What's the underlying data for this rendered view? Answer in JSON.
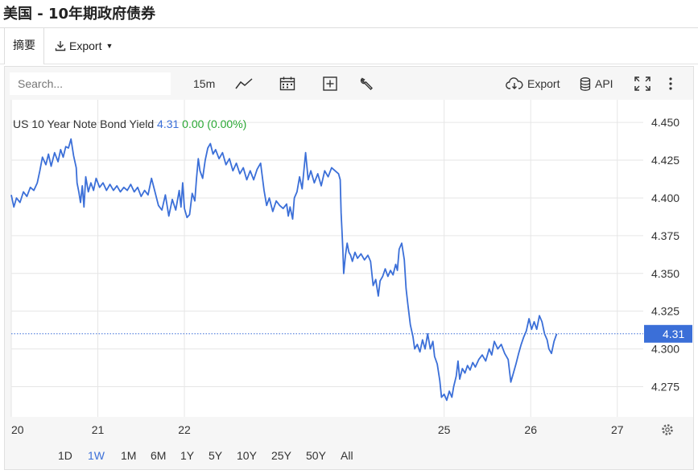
{
  "page": {
    "title": "美国 - 10年期政府债券"
  },
  "tabs": [
    {
      "label": "摘要"
    },
    {
      "label": "Export"
    }
  ],
  "toolbar": {
    "search_placeholder": "Search...",
    "interval": "15m",
    "export_label": "Export",
    "api_label": "API"
  },
  "legend": {
    "name": "US 10 Year Note Bond Yield",
    "value": "4.31",
    "change": "0.00 (0.00%)"
  },
  "last_price_label": "4.31",
  "ranges": [
    "1D",
    "1W",
    "1M",
    "6M",
    "1Y",
    "5Y",
    "10Y",
    "25Y",
    "50Y",
    "All"
  ],
  "active_range": "1W",
  "colors": {
    "line": "#3b6fd8",
    "accent": "#3b6fd8",
    "change": "#2aa834"
  },
  "chart_data": {
    "type": "line",
    "title": "",
    "xlabel": "",
    "ylabel": "",
    "ylim": [
      4.255,
      4.465
    ],
    "yticks": [
      4.275,
      4.3,
      4.325,
      4.35,
      4.375,
      4.4,
      4.425,
      4.45
    ],
    "ytick_labels": [
      "4.275",
      "4.300",
      "4.325",
      "4.350",
      "4.375",
      "4.400",
      "4.425",
      "4.450"
    ],
    "xlim": [
      20,
      27.3
    ],
    "xticks": [
      20,
      21,
      22,
      25,
      26,
      27
    ],
    "xtick_labels": [
      "20",
      "21",
      "22",
      "25",
      "26",
      "27"
    ],
    "grid": true,
    "legend_position": "top-left",
    "series": [
      {
        "name": "US 10 Year Note Bond Yield",
        "points": [
          [
            20.0,
            4.402
          ],
          [
            20.03,
            4.394
          ],
          [
            20.06,
            4.4
          ],
          [
            20.1,
            4.397
          ],
          [
            20.14,
            4.404
          ],
          [
            20.18,
            4.401
          ],
          [
            20.22,
            4.407
          ],
          [
            20.26,
            4.405
          ],
          [
            20.3,
            4.41
          ],
          [
            20.33,
            4.418
          ],
          [
            20.36,
            4.427
          ],
          [
            20.4,
            4.422
          ],
          [
            20.43,
            4.429
          ],
          [
            20.46,
            4.421
          ],
          [
            20.5,
            4.43
          ],
          [
            20.54,
            4.424
          ],
          [
            20.57,
            4.432
          ],
          [
            20.6,
            4.427
          ],
          [
            20.63,
            4.434
          ],
          [
            20.66,
            4.433
          ],
          [
            20.69,
            4.439
          ],
          [
            20.72,
            4.428
          ],
          [
            20.75,
            4.42
          ],
          [
            20.76,
            4.41
          ],
          [
            20.78,
            4.404
          ],
          [
            20.8,
            4.397
          ],
          [
            20.82,
            4.408
          ],
          [
            20.84,
            4.394
          ],
          [
            20.86,
            4.414
          ],
          [
            20.89,
            4.404
          ],
          [
            20.92,
            4.41
          ],
          [
            20.95,
            4.405
          ],
          [
            20.98,
            4.413
          ],
          [
            21.02,
            4.407
          ],
          [
            21.06,
            4.41
          ],
          [
            21.1,
            4.405
          ],
          [
            21.14,
            4.409
          ],
          [
            21.18,
            4.405
          ],
          [
            21.22,
            4.408
          ],
          [
            21.26,
            4.404
          ],
          [
            21.3,
            4.407
          ],
          [
            21.34,
            4.405
          ],
          [
            21.38,
            4.409
          ],
          [
            21.42,
            4.404
          ],
          [
            21.46,
            4.407
          ],
          [
            21.5,
            4.401
          ],
          [
            21.54,
            4.405
          ],
          [
            21.58,
            4.402
          ],
          [
            21.62,
            4.413
          ],
          [
            21.66,
            4.404
          ],
          [
            21.7,
            4.395
          ],
          [
            21.74,
            4.392
          ],
          [
            21.78,
            4.402
          ],
          [
            21.82,
            4.388
          ],
          [
            21.86,
            4.399
          ],
          [
            21.9,
            4.392
          ],
          [
            21.94,
            4.405
          ],
          [
            21.96,
            4.394
          ],
          [
            21.98,
            4.41
          ],
          [
            22.0,
            4.393
          ],
          [
            22.03,
            4.387
          ],
          [
            22.06,
            4.389
          ],
          [
            22.09,
            4.403
          ],
          [
            22.12,
            4.398
          ],
          [
            22.14,
            4.413
          ],
          [
            22.16,
            4.426
          ],
          [
            22.18,
            4.418
          ],
          [
            22.21,
            4.413
          ],
          [
            22.24,
            4.425
          ],
          [
            22.27,
            4.433
          ],
          [
            22.3,
            4.436
          ],
          [
            22.33,
            4.429
          ],
          [
            22.36,
            4.432
          ],
          [
            22.4,
            4.426
          ],
          [
            22.44,
            4.43
          ],
          [
            22.48,
            4.422
          ],
          [
            22.52,
            4.426
          ],
          [
            22.56,
            4.418
          ],
          [
            22.6,
            4.423
          ],
          [
            22.64,
            4.416
          ],
          [
            22.68,
            4.42
          ],
          [
            22.72,
            4.412
          ],
          [
            22.76,
            4.418
          ],
          [
            22.8,
            4.412
          ],
          [
            22.84,
            4.419
          ],
          [
            22.88,
            4.423
          ],
          [
            22.92,
            4.405
          ],
          [
            22.95,
            4.395
          ],
          [
            22.98,
            4.4
          ],
          [
            23.02,
            4.391
          ],
          [
            23.06,
            4.398
          ],
          [
            23.1,
            4.395
          ],
          [
            23.14,
            4.393
          ],
          [
            23.18,
            4.396
          ],
          [
            23.2,
            4.388
          ],
          [
            23.22,
            4.394
          ],
          [
            23.25,
            4.386
          ],
          [
            23.27,
            4.4
          ],
          [
            23.3,
            4.404
          ],
          [
            23.33,
            4.414
          ],
          [
            23.36,
            4.406
          ],
          [
            23.4,
            4.43
          ],
          [
            23.43,
            4.412
          ],
          [
            23.46,
            4.418
          ],
          [
            23.5,
            4.41
          ],
          [
            23.54,
            4.416
          ],
          [
            23.58,
            4.408
          ],
          [
            23.62,
            4.418
          ],
          [
            23.66,
            4.414
          ],
          [
            23.7,
            4.42
          ],
          [
            23.74,
            4.418
          ],
          [
            23.78,
            4.416
          ],
          [
            23.8,
            4.412
          ],
          [
            23.81,
            4.39
          ],
          [
            23.82,
            4.378
          ],
          [
            23.83,
            4.365
          ],
          [
            23.84,
            4.35
          ],
          [
            23.86,
            4.362
          ],
          [
            23.88,
            4.37
          ],
          [
            23.9,
            4.364
          ],
          [
            23.92,
            4.362
          ],
          [
            23.94,
            4.358
          ],
          [
            23.97,
            4.364
          ],
          [
            24.0,
            4.36
          ],
          [
            24.04,
            4.363
          ],
          [
            24.08,
            4.359
          ],
          [
            24.12,
            4.362
          ],
          [
            24.15,
            4.358
          ],
          [
            24.18,
            4.342
          ],
          [
            24.21,
            4.346
          ],
          [
            24.24,
            4.335
          ],
          [
            24.26,
            4.345
          ],
          [
            24.29,
            4.348
          ],
          [
            24.32,
            4.353
          ],
          [
            24.35,
            4.348
          ],
          [
            24.38,
            4.352
          ],
          [
            24.41,
            4.349
          ],
          [
            24.44,
            4.356
          ],
          [
            24.46,
            4.352
          ],
          [
            24.48,
            4.366
          ],
          [
            24.51,
            4.37
          ],
          [
            24.54,
            4.359
          ],
          [
            24.56,
            4.34
          ],
          [
            24.58,
            4.33
          ],
          [
            24.61,
            4.316
          ],
          [
            24.64,
            4.308
          ],
          [
            24.66,
            4.3
          ],
          [
            24.69,
            4.303
          ],
          [
            24.72,
            4.298
          ],
          [
            24.75,
            4.306
          ],
          [
            24.78,
            4.3
          ],
          [
            24.81,
            4.31
          ],
          [
            24.84,
            4.3
          ],
          [
            24.87,
            4.305
          ],
          [
            24.89,
            4.295
          ],
          [
            24.92,
            4.29
          ],
          [
            24.95,
            4.279
          ],
          [
            24.97,
            4.268
          ],
          [
            25.0,
            4.27
          ],
          [
            25.03,
            4.266
          ],
          [
            25.06,
            4.272
          ],
          [
            25.09,
            4.268
          ],
          [
            25.11,
            4.275
          ],
          [
            25.14,
            4.282
          ],
          [
            25.16,
            4.292
          ],
          [
            25.18,
            4.28
          ],
          [
            25.21,
            4.287
          ],
          [
            25.24,
            4.284
          ],
          [
            25.27,
            4.289
          ],
          [
            25.3,
            4.286
          ],
          [
            25.33,
            4.291
          ],
          [
            25.36,
            4.288
          ],
          [
            25.4,
            4.293
          ],
          [
            25.44,
            4.296
          ],
          [
            25.48,
            4.292
          ],
          [
            25.52,
            4.3
          ],
          [
            25.55,
            4.296
          ],
          [
            25.58,
            4.305
          ],
          [
            25.62,
            4.3
          ],
          [
            25.66,
            4.303
          ],
          [
            25.7,
            4.297
          ],
          [
            25.74,
            4.293
          ],
          [
            25.77,
            4.278
          ],
          [
            25.8,
            4.284
          ],
          [
            25.83,
            4.29
          ],
          [
            25.86,
            4.297
          ],
          [
            25.89,
            4.303
          ],
          [
            25.92,
            4.308
          ],
          [
            25.95,
            4.312
          ],
          [
            25.98,
            4.32
          ],
          [
            26.01,
            4.313
          ],
          [
            26.04,
            4.318
          ],
          [
            26.07,
            4.313
          ],
          [
            26.1,
            4.322
          ],
          [
            26.13,
            4.318
          ],
          [
            26.16,
            4.31
          ],
          [
            26.19,
            4.306
          ],
          [
            26.21,
            4.3
          ],
          [
            26.24,
            4.297
          ],
          [
            26.27,
            4.305
          ],
          [
            26.3,
            4.31
          ]
        ]
      }
    ],
    "last_value": 4.31
  }
}
